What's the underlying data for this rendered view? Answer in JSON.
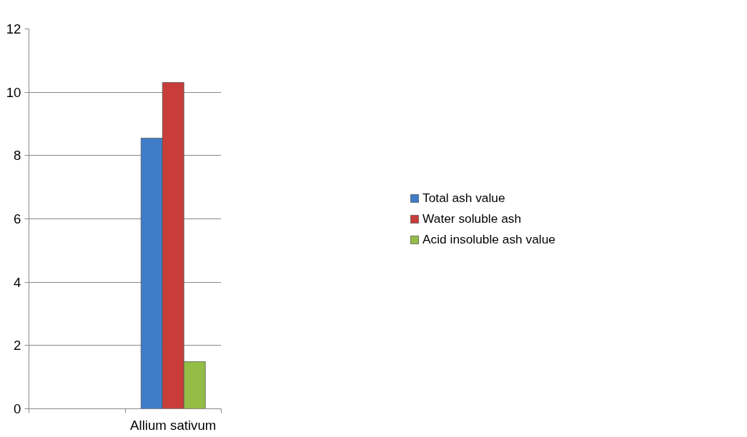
{
  "chart_data": {
    "type": "bar",
    "categories": [
      null,
      "Allium sativum"
    ],
    "series": [
      {
        "name": "Total ash value",
        "color": "#3f7cc8",
        "values": [
          null,
          8.55
        ]
      },
      {
        "name": "Water soluble ash",
        "color": "#c83c3a",
        "values": [
          null,
          10.31
        ]
      },
      {
        "name": "Acid insoluble ash value",
        "color": "#93bd45",
        "values": [
          null,
          1.49
        ]
      }
    ],
    "ylim": [
      0,
      12
    ],
    "yticks": [
      0,
      2,
      4,
      6,
      8,
      10,
      12
    ],
    "grid": "y",
    "legend": "right"
  }
}
